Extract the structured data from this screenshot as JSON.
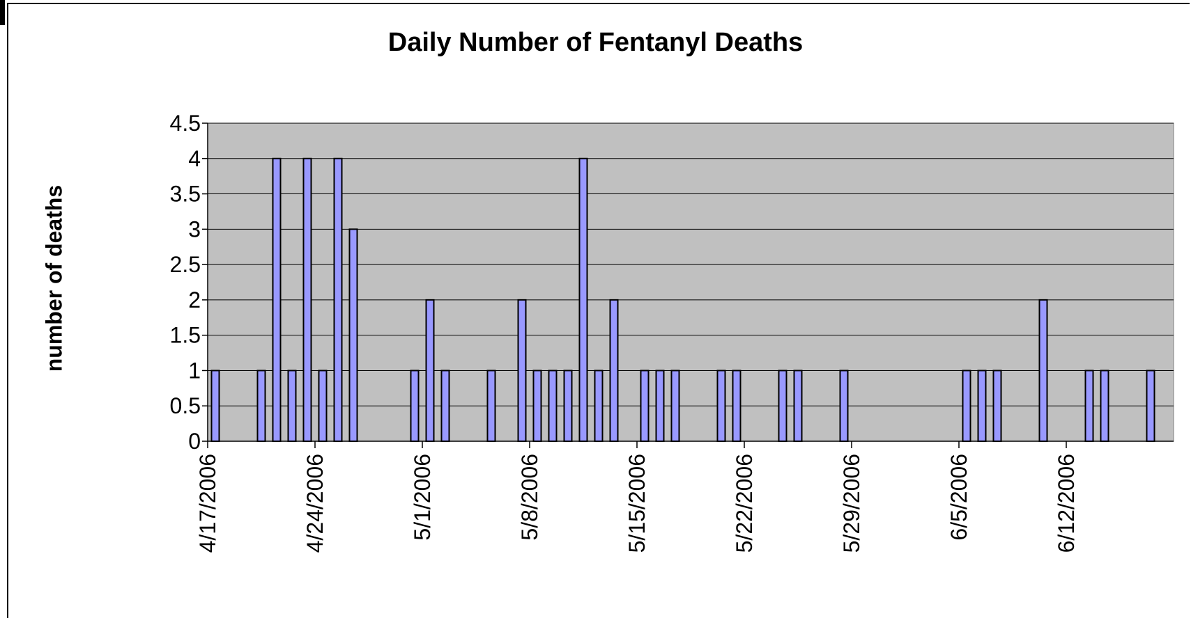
{
  "chart_data": {
    "type": "bar",
    "title": "Daily Number of Fentanyl Deaths",
    "xlabel": "",
    "ylabel": "number of deaths",
    "ylim": [
      0,
      4.5
    ],
    "yticks": [
      "0",
      "0.5",
      "1",
      "1.5",
      "2",
      "2.5",
      "3",
      "3.5",
      "4",
      "4.5"
    ],
    "xlim": [
      "4/17/2006",
      "6/18/2006"
    ],
    "xtick_labels": [
      "4/17/2006",
      "4/24/2006",
      "5/1/2006",
      "5/8/2006",
      "5/15/2006",
      "5/22/2006",
      "5/29/2006",
      "6/5/2006",
      "6/12/2006"
    ],
    "grid": true,
    "points": [
      {
        "date": "4/17/2006",
        "value": 1
      },
      {
        "date": "4/20/2006",
        "value": 1
      },
      {
        "date": "4/21/2006",
        "value": 4
      },
      {
        "date": "4/22/2006",
        "value": 1
      },
      {
        "date": "4/23/2006",
        "value": 4
      },
      {
        "date": "4/24/2006",
        "value": 1
      },
      {
        "date": "4/25/2006",
        "value": 4
      },
      {
        "date": "4/26/2006",
        "value": 3
      },
      {
        "date": "4/30/2006",
        "value": 1
      },
      {
        "date": "5/1/2006",
        "value": 2
      },
      {
        "date": "5/2/2006",
        "value": 1
      },
      {
        "date": "5/5/2006",
        "value": 1
      },
      {
        "date": "5/7/2006",
        "value": 2
      },
      {
        "date": "5/8/2006",
        "value": 1
      },
      {
        "date": "5/9/2006",
        "value": 1
      },
      {
        "date": "5/10/2006",
        "value": 1
      },
      {
        "date": "5/11/2006",
        "value": 4
      },
      {
        "date": "5/12/2006",
        "value": 1
      },
      {
        "date": "5/13/2006",
        "value": 2
      },
      {
        "date": "5/15/2006",
        "value": 1
      },
      {
        "date": "5/16/2006",
        "value": 1
      },
      {
        "date": "5/17/2006",
        "value": 1
      },
      {
        "date": "5/20/2006",
        "value": 1
      },
      {
        "date": "5/21/2006",
        "value": 1
      },
      {
        "date": "5/24/2006",
        "value": 1
      },
      {
        "date": "5/25/2006",
        "value": 1
      },
      {
        "date": "5/28/2006",
        "value": 1
      },
      {
        "date": "6/5/2006",
        "value": 1
      },
      {
        "date": "6/6/2006",
        "value": 1
      },
      {
        "date": "6/7/2006",
        "value": 1
      },
      {
        "date": "6/10/2006",
        "value": 2
      },
      {
        "date": "6/13/2006",
        "value": 1
      },
      {
        "date": "6/14/2006",
        "value": 1
      },
      {
        "date": "6/17/2006",
        "value": 1
      }
    ],
    "colors": {
      "bar_fill": "#9999ff",
      "bar_stroke": "#000000",
      "plot_background": "#c0c0c0",
      "gridline": "#000000"
    }
  }
}
